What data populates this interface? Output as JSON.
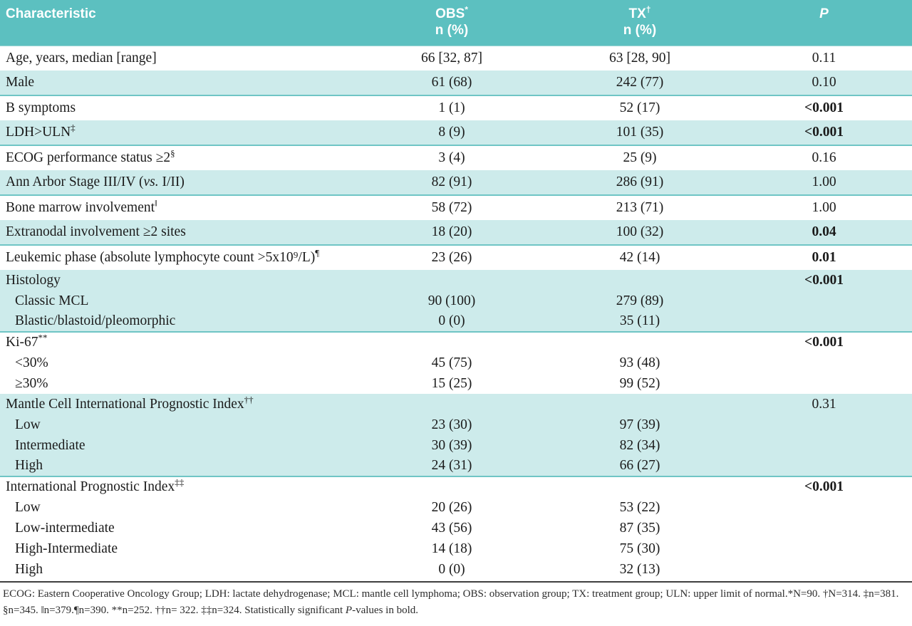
{
  "colors": {
    "header_teal": "#5cc0c0",
    "row_teal": "#cdebeb",
    "border_teal": "#6fc5c5",
    "footnote_line": "#3f3f3f"
  },
  "table": {
    "header": {
      "characteristic": "Characteristic",
      "obs": {
        "title": "OBS",
        "sup": "*",
        "sub": "n (%)"
      },
      "tx": {
        "title": "TX",
        "sup": "†",
        "sub": "n (%)"
      },
      "p": "P"
    },
    "rows": [
      {
        "label": "Age, years, median [range]",
        "obs": "66 [32, 87]",
        "tx": "63 [28, 90]",
        "p": "0.11"
      },
      {
        "label": "Male",
        "obs": "61 (68)",
        "tx": "242 (77)",
        "p": "0.10",
        "shade": true,
        "end": true
      },
      {
        "label": "B symptoms",
        "obs": "1 (1)",
        "tx": "52 (17)",
        "p": "<0.001",
        "p_bold": true
      },
      {
        "label": "LDH>ULN",
        "sup": "‡",
        "obs": "8 (9)",
        "tx": "101 (35)",
        "p": "<0.001",
        "p_bold": true,
        "shade": true,
        "end": true
      },
      {
        "label": "ECOG performance status ≥2",
        "sup": "§",
        "obs": "3 (4)",
        "tx": "25 (9)",
        "p": "0.16"
      },
      {
        "label_pre": "Ann Arbor Stage III/IV (",
        "label_italic": "vs.",
        "label_post": " I/II)",
        "obs": "82 (91)",
        "tx": "286 (91)",
        "p": "1.00",
        "shade": true,
        "end": true
      },
      {
        "label": "Bone marrow involvement",
        "sup": "‖",
        "obs": "58 (72)",
        "tx": "213 (71)",
        "p": "1.00"
      },
      {
        "label": "Extranodal involvement ≥2 sites",
        "obs": "18 (20)",
        "tx": "100 (32)",
        "p": "0.04",
        "p_bold": true,
        "shade": true,
        "end": true
      },
      {
        "label": "Leukemic phase (absolute lymphocyte count >5x10⁹/L)",
        "sup": "¶",
        "obs": "23 (26)",
        "tx": "42 (14)",
        "p": "0.01",
        "p_bold": true
      },
      {
        "label": "Histology",
        "p": "<0.001",
        "p_bold": true,
        "shade": true,
        "group": true
      },
      {
        "label": "Classic MCL",
        "indent": 1,
        "obs": "90 (100)",
        "tx": "279 (89)",
        "shade": true,
        "group": true
      },
      {
        "label": "Blastic/blastoid/pleomorphic",
        "indent": 1,
        "obs": "0 (0)",
        "tx": "35 (11)",
        "shade": true,
        "group": true,
        "end": true
      },
      {
        "label": "Ki-67",
        "sup": "**",
        "p": "<0.001",
        "p_bold": true,
        "group": true
      },
      {
        "label": "<30%",
        "indent": 1,
        "obs": "45 (75)",
        "tx": "93 (48)",
        "group": true
      },
      {
        "label": "≥30%",
        "indent": 1,
        "obs": "15 (25)",
        "tx": "99 (52)",
        "group": true
      },
      {
        "label": "Mantle Cell International Prognostic Index",
        "sup": "††",
        "p": "0.31",
        "shade": true,
        "group": true
      },
      {
        "label": "Low",
        "indent": 1,
        "obs": "23 (30)",
        "tx": "97 (39)",
        "shade": true,
        "group": true
      },
      {
        "label": "Intermediate",
        "indent": 1,
        "obs": "30 (39)",
        "tx": "82 (34)",
        "shade": true,
        "group": true
      },
      {
        "label": "High",
        "indent": 1,
        "obs": "24 (31)",
        "tx": "66 (27)",
        "shade": true,
        "group": true,
        "end": true
      },
      {
        "label": "International Prognostic Index",
        "sup": "‡‡",
        "p": "<0.001",
        "p_bold": true,
        "group": true
      },
      {
        "label": "Low",
        "indent": 1,
        "obs": "20 (26)",
        "tx": "53 (22)",
        "group": true
      },
      {
        "label": "Low-intermediate",
        "indent": 1,
        "obs": "43 (56)",
        "tx": "87 (35)",
        "group": true
      },
      {
        "label": "High-Intermediate",
        "indent": 1,
        "obs": "14 (18)",
        "tx": "75 (30)",
        "group": true
      },
      {
        "label": "High",
        "indent": 1,
        "obs": "0 (0)",
        "tx": "32 (13)",
        "group": true
      }
    ]
  },
  "footnote": {
    "text_pre": "ECOG: Eastern Cooperative Oncology Group; LDH: lactate dehydrogenase; MCL: mantle cell lymphoma; OBS: observation group; TX: treatment group; ULN: upper limit of normal.*N=90. †N=314. ‡n=381. §n=345. ‖n=379.¶n=390. **n=252. ††n= 322. ‡‡n=324. Statistically significant ",
    "text_italic": "P",
    "text_post": "-values in bold."
  }
}
